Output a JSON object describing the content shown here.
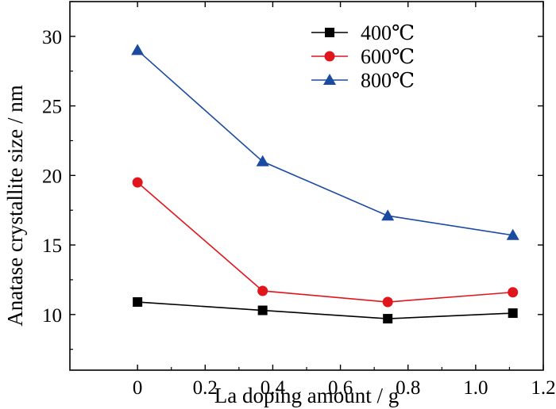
{
  "chart_data": {
    "type": "line",
    "xlabel": "La doping amount / g",
    "ylabel": "Anatase crystallite size / nm",
    "xlim": [
      -0.2,
      1.2
    ],
    "ylim": [
      6,
      32.5
    ],
    "x_ticks": [
      "0",
      "0.2",
      "0.4",
      "0.6",
      "0.8",
      "1.0",
      "1.2"
    ],
    "x_tick_values": [
      0,
      0.2,
      0.4,
      0.6,
      0.8,
      1.0,
      1.2
    ],
    "y_ticks": [
      "10",
      "15",
      "20",
      "25",
      "30"
    ],
    "y_tick_values": [
      10,
      15,
      20,
      25,
      30
    ],
    "legend_position": "top-right",
    "x": [
      0,
      0.37,
      0.74,
      1.11
    ],
    "series": [
      {
        "name": "400℃",
        "values": [
          10.9,
          10.3,
          9.7,
          10.1
        ],
        "color": "#000000",
        "marker": "square"
      },
      {
        "name": "600℃",
        "values": [
          19.5,
          11.7,
          10.9,
          11.6
        ],
        "color": "#e0161c",
        "marker": "circle"
      },
      {
        "name": "800℃",
        "values": [
          29.0,
          21.0,
          17.1,
          15.7
        ],
        "color": "#1b4aa1",
        "marker": "triangle"
      }
    ]
  }
}
